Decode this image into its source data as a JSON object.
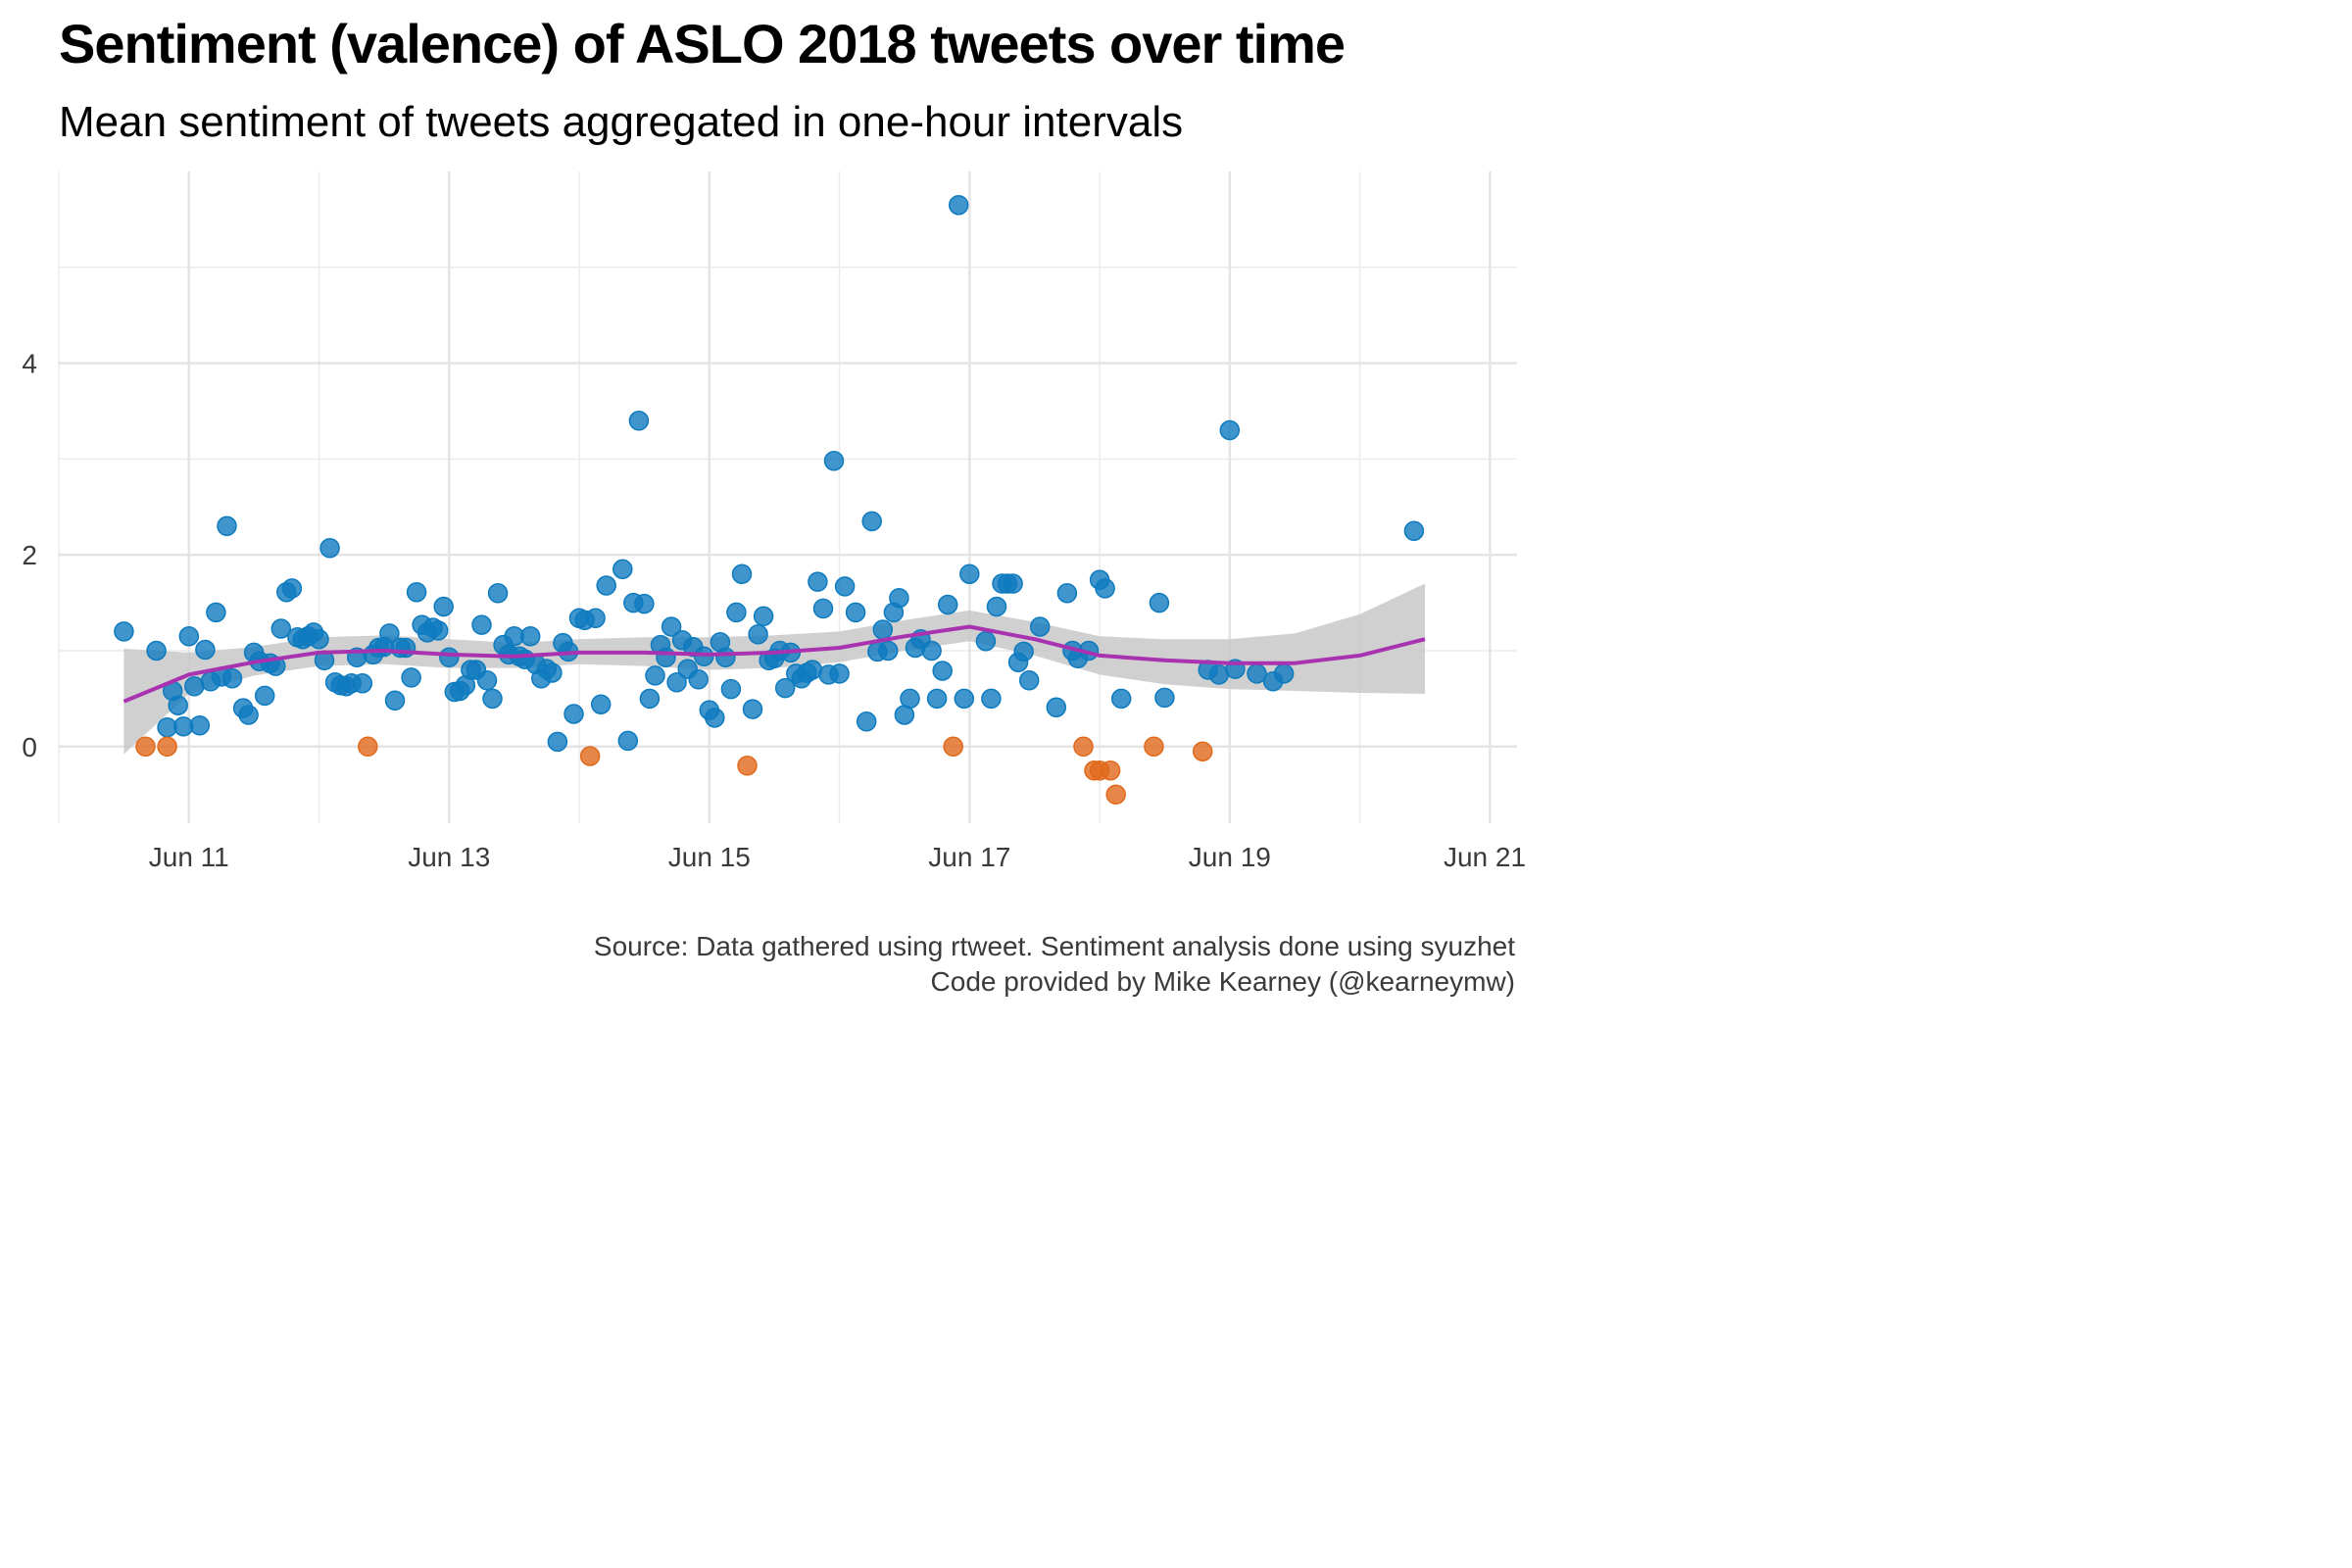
{
  "chart_data": {
    "type": "scatter",
    "title": "Sentiment (valence) of ASLO 2018 tweets over time",
    "subtitle": "Mean sentiment of tweets aggregated in one-hour intervals",
    "caption": [
      "Source: Data gathered using rtweet. Sentiment analysis done using syuzhet",
      "Code provided by Mike Kearney (@kearneymw)"
    ],
    "xlabel": "",
    "ylabel": "",
    "x_ticks": [
      "Jun 11",
      "Jun 13",
      "Jun 15",
      "Jun 17",
      "Jun 19",
      "Jun 21"
    ],
    "y_ticks": [
      0,
      2,
      4
    ],
    "xlim": [
      "Jun 10 00:00",
      "Jun 21 05:00"
    ],
    "ylim": [
      -0.8,
      6.0
    ],
    "grid": true,
    "colors": {
      "positive": "#0f7bbf",
      "negative": "#e0691c",
      "smooth": "#a832b0",
      "band": "#c8c8c8"
    },
    "series": [
      {
        "points": [
          [
            "Jun 10 12:00",
            1.2
          ],
          [
            "Jun 10 18:00",
            1.0
          ],
          [
            "Jun 10 20:00",
            0.2
          ],
          [
            "Jun 10 21:00",
            0.58
          ],
          [
            "Jun 10 22:00",
            0.43
          ],
          [
            "Jun 10 23:00",
            0.21
          ],
          [
            "Jun 11 00:00",
            1.15
          ],
          [
            "Jun 11 01:00",
            0.63
          ],
          [
            "Jun 11 02:00",
            0.22
          ],
          [
            "Jun 11 03:00",
            1.01
          ],
          [
            "Jun 11 04:00",
            0.68
          ],
          [
            "Jun 11 05:00",
            1.4
          ],
          [
            "Jun 11 06:00",
            0.73
          ],
          [
            "Jun 11 07:00",
            2.3
          ],
          [
            "Jun 11 08:00",
            0.71
          ],
          [
            "Jun 11 10:00",
            0.4
          ],
          [
            "Jun 11 11:00",
            0.33
          ],
          [
            "Jun 11 12:00",
            0.98
          ],
          [
            "Jun 11 13:00",
            0.89
          ],
          [
            "Jun 11 14:00",
            0.53
          ],
          [
            "Jun 11 15:00",
            0.87
          ],
          [
            "Jun 11 16:00",
            0.84
          ],
          [
            "Jun 11 17:00",
            1.23
          ],
          [
            "Jun 11 18:00",
            1.61
          ],
          [
            "Jun 11 19:00",
            1.65
          ],
          [
            "Jun 11 20:00",
            1.14
          ],
          [
            "Jun 11 21:00",
            1.12
          ],
          [
            "Jun 11 22:00",
            1.15
          ],
          [
            "Jun 11 23:00",
            1.19
          ],
          [
            "Jun 12 00:00",
            1.12
          ],
          [
            "Jun 12 01:00",
            0.9
          ],
          [
            "Jun 12 02:00",
            2.07
          ],
          [
            "Jun 12 03:00",
            0.67
          ],
          [
            "Jun 12 04:00",
            0.64
          ],
          [
            "Jun 12 05:00",
            0.63
          ],
          [
            "Jun 12 06:00",
            0.66
          ],
          [
            "Jun 12 07:00",
            0.93
          ],
          [
            "Jun 12 08:00",
            0.66
          ],
          [
            "Jun 12 10:00",
            0.96
          ],
          [
            "Jun 12 11:00",
            1.03
          ],
          [
            "Jun 12 12:00",
            1.04
          ],
          [
            "Jun 12 13:00",
            1.18
          ],
          [
            "Jun 12 14:00",
            0.48
          ],
          [
            "Jun 12 15:00",
            1.03
          ],
          [
            "Jun 12 16:00",
            1.03
          ],
          [
            "Jun 12 17:00",
            0.72
          ],
          [
            "Jun 12 18:00",
            1.61
          ],
          [
            "Jun 12 19:00",
            1.27
          ],
          [
            "Jun 12 20:00",
            1.19
          ],
          [
            "Jun 12 21:00",
            1.24
          ],
          [
            "Jun 12 22:00",
            1.21
          ],
          [
            "Jun 12 23:00",
            1.46
          ],
          [
            "Jun 13 00:00",
            0.93
          ],
          [
            "Jun 13 01:00",
            0.57
          ],
          [
            "Jun 13 02:00",
            0.58
          ],
          [
            "Jun 13 03:00",
            0.64
          ],
          [
            "Jun 13 04:00",
            0.8
          ],
          [
            "Jun 13 05:00",
            0.8
          ],
          [
            "Jun 13 06:00",
            1.27
          ],
          [
            "Jun 13 07:00",
            0.69
          ],
          [
            "Jun 13 08:00",
            0.5
          ],
          [
            "Jun 13 09:00",
            1.6
          ],
          [
            "Jun 13 10:00",
            1.06
          ],
          [
            "Jun 13 11:00",
            0.96
          ],
          [
            "Jun 13 12:00",
            1.15
          ],
          [
            "Jun 13 13:00",
            0.94
          ],
          [
            "Jun 13 14:00",
            0.91
          ],
          [
            "Jun 13 15:00",
            1.15
          ],
          [
            "Jun 13 16:00",
            0.86
          ],
          [
            "Jun 13 17:00",
            0.71
          ],
          [
            "Jun 13 18:00",
            0.81
          ],
          [
            "Jun 13 19:00",
            0.77
          ],
          [
            "Jun 13 20:00",
            0.05
          ],
          [
            "Jun 13 21:00",
            1.08
          ],
          [
            "Jun 13 22:00",
            0.99
          ],
          [
            "Jun 13 23:00",
            0.34
          ],
          [
            "Jun 14 00:00",
            1.34
          ],
          [
            "Jun 14 01:00",
            1.32
          ],
          [
            "Jun 14 03:00",
            1.34
          ],
          [
            "Jun 14 04:00",
            0.44
          ],
          [
            "Jun 14 05:00",
            1.68
          ],
          [
            "Jun 14 08:00",
            1.85
          ],
          [
            "Jun 14 09:00",
            0.06
          ],
          [
            "Jun 14 10:00",
            1.5
          ],
          [
            "Jun 14 11:00",
            3.4
          ],
          [
            "Jun 14 12:00",
            1.49
          ],
          [
            "Jun 14 13:00",
            0.5
          ],
          [
            "Jun 14 14:00",
            0.74
          ],
          [
            "Jun 14 15:00",
            1.06
          ],
          [
            "Jun 14 16:00",
            0.93
          ],
          [
            "Jun 14 17:00",
            1.25
          ],
          [
            "Jun 14 18:00",
            0.67
          ],
          [
            "Jun 14 19:00",
            1.11
          ],
          [
            "Jun 14 20:00",
            0.81
          ],
          [
            "Jun 14 21:00",
            1.04
          ],
          [
            "Jun 14 22:00",
            0.7
          ],
          [
            "Jun 14 23:00",
            0.94
          ],
          [
            "Jun 15 00:00",
            0.38
          ],
          [
            "Jun 15 01:00",
            0.3
          ],
          [
            "Jun 15 02:00",
            1.09
          ],
          [
            "Jun 15 03:00",
            0.93
          ],
          [
            "Jun 15 04:00",
            0.6
          ],
          [
            "Jun 15 05:00",
            1.4
          ],
          [
            "Jun 15 06:00",
            1.8
          ],
          [
            "Jun 15 08:00",
            0.39
          ],
          [
            "Jun 15 09:00",
            1.17
          ],
          [
            "Jun 15 10:00",
            1.36
          ],
          [
            "Jun 15 11:00",
            0.9
          ],
          [
            "Jun 15 12:00",
            0.92
          ],
          [
            "Jun 15 13:00",
            1.0
          ],
          [
            "Jun 15 14:00",
            0.61
          ],
          [
            "Jun 15 15:00",
            0.98
          ],
          [
            "Jun 15 16:00",
            0.76
          ],
          [
            "Jun 15 17:00",
            0.71
          ],
          [
            "Jun 15 18:00",
            0.77
          ],
          [
            "Jun 15 19:00",
            0.8
          ],
          [
            "Jun 15 20:00",
            1.72
          ],
          [
            "Jun 15 21:00",
            1.44
          ],
          [
            "Jun 15 22:00",
            0.75
          ],
          [
            "Jun 15 23:00",
            2.98
          ],
          [
            "Jun 16 00:00",
            0.76
          ],
          [
            "Jun 16 01:00",
            1.67
          ],
          [
            "Jun 16 03:00",
            1.4
          ],
          [
            "Jun 16 05:00",
            0.26
          ],
          [
            "Jun 16 06:00",
            2.35
          ],
          [
            "Jun 16 07:00",
            0.99
          ],
          [
            "Jun 16 08:00",
            1.22
          ],
          [
            "Jun 16 09:00",
            1.0
          ],
          [
            "Jun 16 10:00",
            1.4
          ],
          [
            "Jun 16 11:00",
            1.55
          ],
          [
            "Jun 16 12:00",
            0.33
          ],
          [
            "Jun 16 13:00",
            0.5
          ],
          [
            "Jun 16 14:00",
            1.03
          ],
          [
            "Jun 16 15:00",
            1.12
          ],
          [
            "Jun 16 17:00",
            1.0
          ],
          [
            "Jun 16 18:00",
            0.5
          ],
          [
            "Jun 16 19:00",
            0.79
          ],
          [
            "Jun 16 20:00",
            1.48
          ],
          [
            "Jun 16 22:00",
            5.65
          ],
          [
            "Jun 16 23:00",
            0.5
          ],
          [
            "Jun 17 00:00",
            1.8
          ],
          [
            "Jun 17 03:00",
            1.1
          ],
          [
            "Jun 17 04:00",
            0.5
          ],
          [
            "Jun 17 05:00",
            1.46
          ],
          [
            "Jun 17 06:00",
            1.7
          ],
          [
            "Jun 17 07:00",
            1.7
          ],
          [
            "Jun 17 08:00",
            1.7
          ],
          [
            "Jun 17 09:00",
            0.88
          ],
          [
            "Jun 17 10:00",
            0.99
          ],
          [
            "Jun 17 11:00",
            0.69
          ],
          [
            "Jun 17 13:00",
            1.25
          ],
          [
            "Jun 17 16:00",
            0.41
          ],
          [
            "Jun 17 18:00",
            1.6
          ],
          [
            "Jun 17 19:00",
            1.0
          ],
          [
            "Jun 17 20:00",
            0.92
          ],
          [
            "Jun 17 22:00",
            1.0
          ],
          [
            "Jun 18 00:00",
            1.74
          ],
          [
            "Jun 18 01:00",
            1.65
          ],
          [
            "Jun 18 04:00",
            0.5
          ],
          [
            "Jun 18 11:00",
            1.5
          ],
          [
            "Jun 18 12:00",
            0.51
          ],
          [
            "Jun 18 20:00",
            0.8
          ],
          [
            "Jun 18 22:00",
            0.75
          ],
          [
            "Jun 19 00:00",
            3.3
          ],
          [
            "Jun 19 01:00",
            0.81
          ],
          [
            "Jun 19 05:00",
            0.76
          ],
          [
            "Jun 19 08:00",
            0.68
          ],
          [
            "Jun 19 10:00",
            0.76
          ],
          [
            "Jun 20 10:00",
            2.25
          ]
        ]
      },
      {
        "points": [
          [
            "Jun 10 16:00",
            0.0
          ],
          [
            "Jun 10 20:00",
            0.0
          ],
          [
            "Jun 12 09:00",
            0.0
          ],
          [
            "Jun 14 02:00",
            -0.1
          ],
          [
            "Jun 15 07:00",
            -0.2
          ],
          [
            "Jun 16 21:00",
            0.0
          ],
          [
            "Jun 17 21:00",
            0.0
          ],
          [
            "Jun 17 23:00",
            -0.25
          ],
          [
            "Jun 18 00:00",
            -0.25
          ],
          [
            "Jun 18 02:00",
            -0.25
          ],
          [
            "Jun 18 03:00",
            -0.5
          ],
          [
            "Jun 18 10:00",
            0.0
          ],
          [
            "Jun 18 19:00",
            -0.05
          ]
        ]
      }
    ],
    "smooth": {
      "x": [
        "Jun 10 12:00",
        "Jun 11 00:00",
        "Jun 11 12:00",
        "Jun 12 00:00",
        "Jun 12 12:00",
        "Jun 13 00:00",
        "Jun 13 12:00",
        "Jun 14 00:00",
        "Jun 14 12:00",
        "Jun 15 00:00",
        "Jun 15 12:00",
        "Jun 16 00:00",
        "Jun 16 12:00",
        "Jun 17 00:00",
        "Jun 17 12:00",
        "Jun 18 00:00",
        "Jun 18 12:00",
        "Jun 19 00:00",
        "Jun 19 12:00",
        "Jun 20 00:00",
        "Jun 20 12:00"
      ],
      "y": [
        0.47,
        0.75,
        0.88,
        0.98,
        1.0,
        0.96,
        0.94,
        0.98,
        0.98,
        0.96,
        0.98,
        1.03,
        1.15,
        1.25,
        1.12,
        0.95,
        0.9,
        0.87,
        0.87,
        0.95,
        1.12
      ],
      "lower": [
        -0.08,
        0.55,
        0.74,
        0.84,
        0.86,
        0.82,
        0.82,
        0.86,
        0.84,
        0.8,
        0.82,
        0.88,
        1.0,
        1.1,
        0.95,
        0.75,
        0.65,
        0.6,
        0.58,
        0.56,
        0.55
      ],
      "upper": [
        1.02,
        0.98,
        1.04,
        1.14,
        1.16,
        1.12,
        1.08,
        1.12,
        1.14,
        1.14,
        1.16,
        1.2,
        1.32,
        1.42,
        1.3,
        1.15,
        1.12,
        1.12,
        1.18,
        1.38,
        1.7
      ]
    }
  }
}
